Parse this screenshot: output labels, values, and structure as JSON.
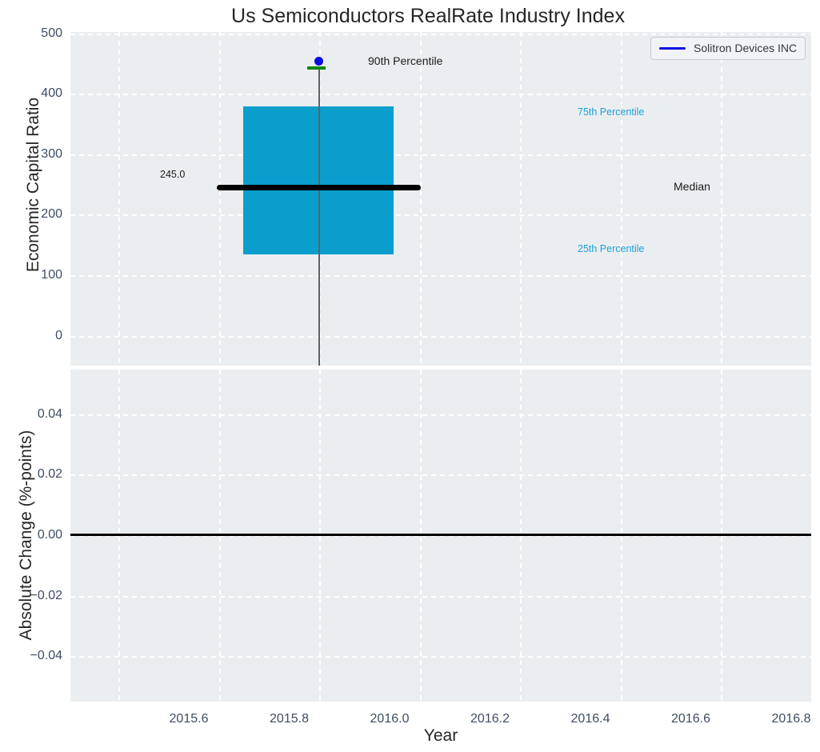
{
  "title": "Us Semiconductors RealRate Industry Index",
  "xlabel": "Year",
  "xticks": [
    "2015.6",
    "2015.8",
    "2016.0",
    "2016.2",
    "2016.4",
    "2016.6",
    "2016.8"
  ],
  "legend": {
    "label": "Solitron Devices INC",
    "line_color": "#0000ff"
  },
  "top_chart": {
    "ylabel": "Economic Capital Ratio",
    "yticks": [
      "500",
      "400",
      "300",
      "200",
      "100",
      "0"
    ],
    "annotations": {
      "p90": "90th Percentile",
      "p75": "75th Percentile",
      "median": "Median",
      "p25": "25th Percentile",
      "median_value": "245.0"
    }
  },
  "bottom_chart": {
    "ylabel": "Absolute Change (%-points)",
    "yticks": [
      "0.04",
      "0.02",
      "0.00",
      "−0.02",
      "−0.04"
    ]
  },
  "colors": {
    "box_fill": "#0a9ecd",
    "percentile_label": "#1ba1d8",
    "marker_blue": "#0b0be6",
    "cap_green": "#088b08",
    "median_line": "#000000",
    "plot_background": "#ebeef1",
    "tick_text": "#3e4d63"
  },
  "chart_data": {
    "type": "box",
    "title": "Us Semiconductors RealRate Industry Index",
    "xlabel": "Year",
    "xlim": [
      2015.5,
      2016.98
    ],
    "xticks": [
      2015.6,
      2015.8,
      2016.0,
      2016.2,
      2016.4,
      2016.6,
      2016.8
    ],
    "top_panel": {
      "ylabel": "Economic Capital Ratio",
      "ylim": [
        -49,
        503
      ],
      "yticks": [
        0,
        100,
        200,
        300,
        400,
        500
      ],
      "box": {
        "x": 2016.0,
        "q1": 135,
        "median": 245.0,
        "q3": 379,
        "whisker_high_90th_percentile": 444,
        "whisker_low": -48,
        "box_half_width_years": 0.15
      },
      "marker": {
        "name": "Solitron Devices INC",
        "x": 2016.0,
        "y": 452
      },
      "annotations": [
        {
          "text": "245.0",
          "x": 2015.84,
          "y": 268
        },
        {
          "text": "90th Percentile",
          "x": 2016.1,
          "y": 456
        },
        {
          "text": "75th Percentile",
          "x": 2016.52,
          "y": 371
        },
        {
          "text": "Median",
          "x": 2016.71,
          "y": 247
        },
        {
          "text": "25th Percentile",
          "x": 2016.52,
          "y": 144
        }
      ],
      "legend_position": "upper right",
      "grid": "white dashed"
    },
    "bottom_panel": {
      "ylabel": "Absolute Change (%-points)",
      "ylim": [
        -0.055,
        0.055
      ],
      "yticks": [
        -0.04,
        -0.02,
        0.0,
        0.02,
        0.04
      ],
      "series": [],
      "zero_line_y": 0.0,
      "grid": "white dashed"
    }
  }
}
